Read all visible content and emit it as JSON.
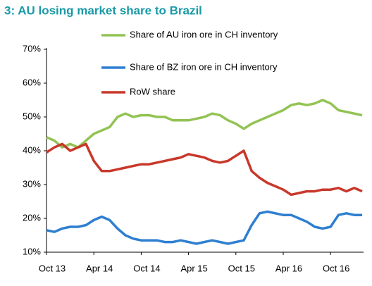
{
  "chart_data": {
    "type": "line",
    "title": "3: AU losing market share to Brazil",
    "categories": [
      "Oct 13",
      null,
      null,
      null,
      null,
      null,
      "Apr 14",
      null,
      null,
      null,
      null,
      null,
      "Oct 14",
      null,
      null,
      null,
      null,
      null,
      "Apr 15",
      null,
      null,
      null,
      null,
      null,
      "Oct 15",
      null,
      null,
      null,
      null,
      null,
      "Apr 16",
      null,
      null,
      null,
      null,
      null,
      "Oct 16",
      null,
      null,
      null,
      null
    ],
    "series": [
      {
        "name": "Share of AU iron ore in CH inventory",
        "color": "#92c353",
        "values": [
          44,
          43,
          41,
          42,
          41,
          43,
          45,
          46,
          47,
          50,
          51,
          50,
          50.5,
          50.5,
          50,
          50,
          49,
          49,
          49,
          49.5,
          50,
          51,
          50.5,
          49,
          48,
          46.5,
          48,
          49,
          50,
          51,
          52,
          53.5,
          54,
          53.5,
          54,
          55,
          54,
          52,
          51.5,
          51,
          50.5
        ]
      },
      {
        "name": "Share of BZ iron ore in CH inventory",
        "color": "#2e7fd0",
        "values": [
          16.5,
          16,
          17,
          17.5,
          17.5,
          18,
          19.5,
          20.5,
          19.5,
          17,
          15,
          14,
          13.5,
          13.5,
          13.5,
          13,
          13,
          13.5,
          13,
          12.5,
          13,
          13.5,
          13,
          12.5,
          13,
          13.5,
          18,
          21.5,
          22,
          21.5,
          21,
          21,
          20,
          19,
          17.5,
          17,
          17.5,
          21,
          21.5,
          21,
          21
        ]
      },
      {
        "name": "RoW share",
        "color": "#c8382a",
        "values": [
          39.5,
          41,
          42,
          40,
          41,
          42,
          37,
          34,
          34,
          34.5,
          35,
          35.5,
          36,
          36,
          36.5,
          37,
          37.5,
          38,
          39,
          38.5,
          38,
          37,
          36.5,
          37,
          38.5,
          40,
          34,
          32,
          30.5,
          29.5,
          28.5,
          27,
          27.5,
          28,
          28,
          28.5,
          28.5,
          29,
          28,
          29,
          28
        ]
      }
    ],
    "ylim": [
      10,
      70
    ],
    "yticks": [
      {
        "value": 10,
        "label": "10%"
      },
      {
        "value": 20,
        "label": "20%"
      },
      {
        "value": 30,
        "label": "30%"
      },
      {
        "value": 40,
        "label": "40%"
      },
      {
        "value": 50,
        "label": "50%"
      },
      {
        "value": 60,
        "label": "60%"
      },
      {
        "value": 70,
        "label": "70%"
      }
    ]
  }
}
